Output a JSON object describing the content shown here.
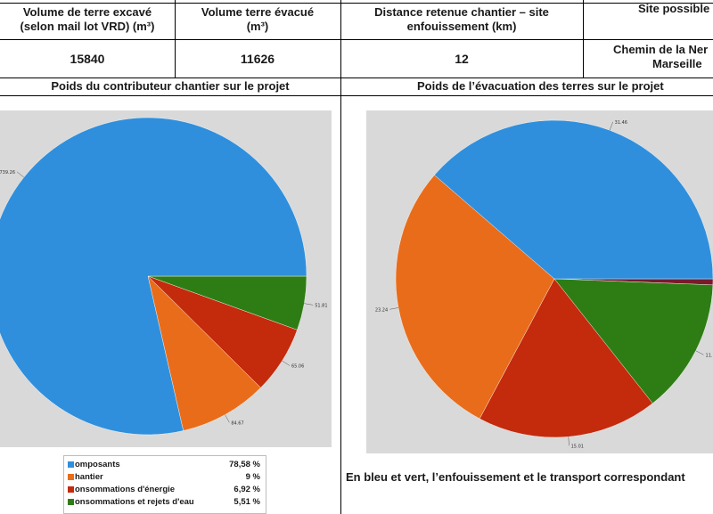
{
  "table": {
    "headers": [
      {
        "line1": "Volume de terre  excavé",
        "line2": "(selon mail lot VRD) (m³)"
      },
      {
        "line1": "Volume terre évacué",
        "line2": "(m³)"
      },
      {
        "line1": "Distance retenue  chantier – site",
        "line2": "enfouissement  (km)"
      },
      {
        "line1": "Site possible",
        "line2": ""
      }
    ],
    "values": [
      {
        "line1": "15840",
        "line2": ""
      },
      {
        "line1": "11626",
        "line2": ""
      },
      {
        "line1": "12",
        "line2": ""
      },
      {
        "line1": "Chemin de la Ner",
        "line2": "Marseille"
      }
    ]
  },
  "section_titles": {
    "left": "Poids du contributeur chantier sur le projet",
    "right": "Poids de l’évacuation des terres sur le projet"
  },
  "legend": [
    {
      "name": "omposants",
      "value": "78,58 %",
      "color": "#2f8fdc"
    },
    {
      "name": "hantier",
      "value": "9 %",
      "color": "#e96c1a"
    },
    {
      "name": "onsommations d'énergie",
      "value": "6,92 %",
      "color": "#c42a0c"
    },
    {
      "name": "onsommations et rejets d'eau",
      "value": "5,51 %",
      "color": "#2e7d14"
    }
  ],
  "caption": "En bleu et vert, l’enfouissement et le transport correspondant",
  "chart_data": [
    {
      "type": "pie",
      "title": "Poids du contributeur chantier sur le projet",
      "series": [
        {
          "name": "Composants",
          "value": 739.26,
          "label": "739.26",
          "color": "#2f8fdc"
        },
        {
          "name": "Chantier",
          "value": 84.67,
          "label": "84.67",
          "color": "#e96c1a"
        },
        {
          "name": "Consommations d'énergie",
          "value": 65.06,
          "label": "65.06",
          "color": "#c42a0c"
        },
        {
          "name": "Consommations et rejets d'eau",
          "value": 51.81,
          "label": "51.81",
          "color": "#2e7d14"
        }
      ]
    },
    {
      "type": "pie",
      "title": "Poids de l’évacuation des terres sur le projet",
      "series": [
        {
          "name": "Bleu",
          "value": 31.46,
          "label": "31.46",
          "color": "#2f8fdc"
        },
        {
          "name": "Rouge foncé",
          "value": 0.5,
          "label": "",
          "color": "#7a1a2a"
        },
        {
          "name": "Vert",
          "value": 11.2,
          "label": "11.",
          "color": "#2e7d14"
        },
        {
          "name": "Rouge",
          "value": 15.01,
          "label": "15.01",
          "color": "#c42a0c"
        },
        {
          "name": "Orange",
          "value": 23.24,
          "label": "23.24",
          "color": "#e96c1a"
        }
      ]
    }
  ]
}
